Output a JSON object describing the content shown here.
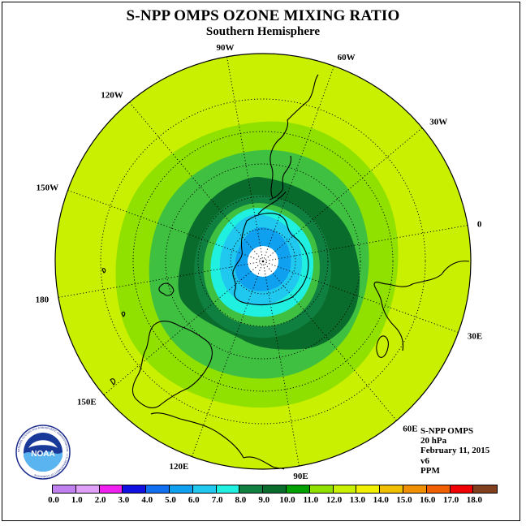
{
  "title": "S-NPP OMPS OZONE MIXING RATIO",
  "subtitle": "Southern Hemisphere",
  "longitude_labels": [
    "90W",
    "60W",
    "30W",
    "0",
    "30E",
    "60E",
    "90E",
    "120E",
    "150E",
    "180",
    "150W",
    "120W"
  ],
  "info": {
    "instrument": "S-NPP OMPS",
    "pressure_level": "20 hPa",
    "date": "February 11, 2015",
    "version": "v6",
    "units": "PPM"
  },
  "logo": {
    "text": "NOAA",
    "ring_text": "NATIONAL OCEANIC AND ATMOSPHERIC ADMINISTRATION · U.S. DEPARTMENT OF COMMERCE"
  },
  "colorbar": {
    "ticks": [
      "0.0",
      "1.0",
      "2.0",
      "3.0",
      "4.0",
      "5.0",
      "6.0",
      "7.0",
      "8.0",
      "9.0",
      "10.0",
      "11.0",
      "12.0",
      "13.0",
      "14.0",
      "15.0",
      "16.0",
      "17.0",
      "18.0"
    ],
    "colors": [
      "#c080f0",
      "#e0a0f8",
      "#f020f0",
      "#1010e0",
      "#1070f0",
      "#10a0f0",
      "#20c8f0",
      "#20f0e0",
      "#108040",
      "#0a6c2c",
      "#00a000",
      "#90e000",
      "#c8f000",
      "#f0f000",
      "#f0c000",
      "#f09000",
      "#f06000",
      "#f00000",
      "#804020"
    ]
  },
  "colors": {
    "outer_yellow_green": "#c8f000",
    "light_green": "#90e000",
    "mid_green": "#40c040",
    "forest_green": "#108040",
    "dark_green": "#0a6c2c",
    "cyan": "#20f0e0",
    "sky_blue": "#20c8f0",
    "blue": "#10a0f0",
    "center_white": "#ffffff"
  },
  "map": {
    "projection": "south polar stereographic",
    "graticule": "dotted",
    "coastlines": true
  }
}
